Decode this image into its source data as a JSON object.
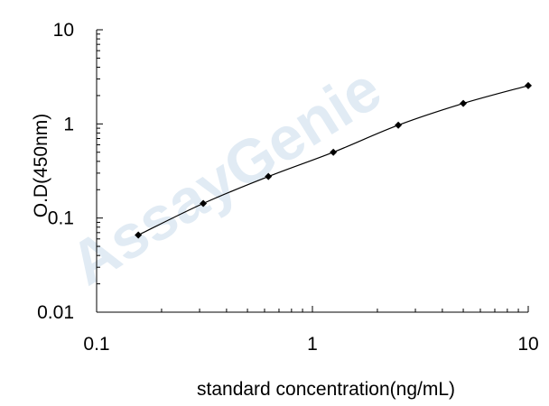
{
  "watermark": "AssayGenie",
  "chart_data": {
    "type": "line",
    "title": "",
    "xlabel": "standard concentration(ng/mL)",
    "ylabel": "O.D(450nm)",
    "xscale": "log",
    "yscale": "log",
    "xlim": [
      0.1,
      10
    ],
    "ylim": [
      0.01,
      10
    ],
    "x_ticks": [
      0.1,
      1,
      10
    ],
    "x_tick_labels": [
      "0.1",
      "1",
      "10"
    ],
    "y_ticks": [
      0.01,
      0.1,
      1,
      10
    ],
    "y_tick_labels": [
      "0.01",
      "0.1",
      "1",
      "10"
    ],
    "grid": false,
    "marker": "diamond",
    "colors": {
      "line": "#000000",
      "marker": "#000000",
      "watermark": "#c9dcec"
    },
    "series": [
      {
        "x": [
          0.156,
          0.312,
          0.625,
          1.25,
          2.5,
          5,
          10
        ],
        "y": [
          0.066,
          0.143,
          0.276,
          0.5,
          0.97,
          1.65,
          2.55
        ]
      }
    ]
  }
}
